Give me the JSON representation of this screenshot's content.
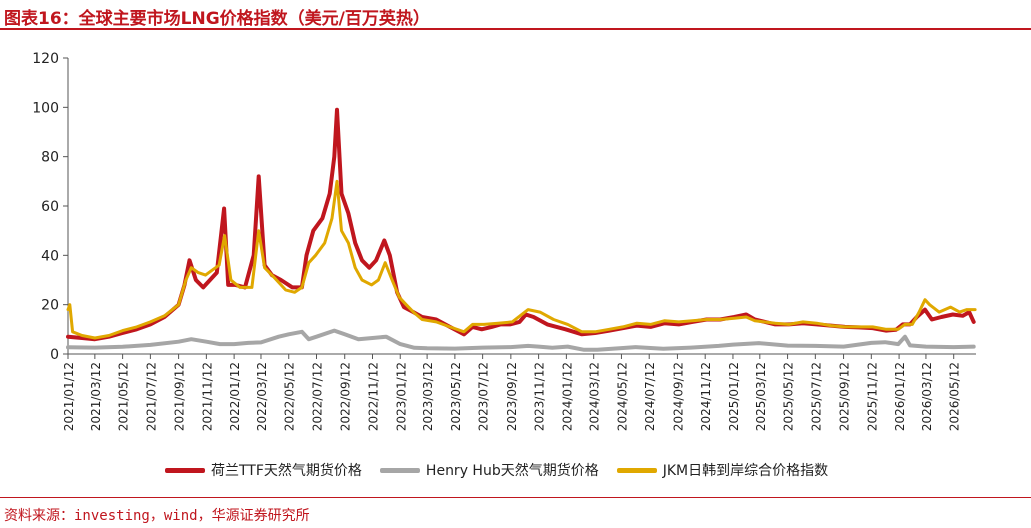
{
  "title": "图表16：全球主要市场LNG价格指数（美元/百万英热）",
  "source": "资料来源：investing，wind，华源证券研究所",
  "colors": {
    "ttf": "#c0161e",
    "henry": "#a6a6a6",
    "jkm": "#e0a800",
    "accent": "#c0161e"
  },
  "chart_data": {
    "type": "line",
    "title": "",
    "xlabel": "",
    "ylabel": "",
    "ylim": [
      0,
      120
    ],
    "yticks": [
      0,
      20,
      40,
      60,
      80,
      100,
      120
    ],
    "grid": false,
    "legend_position": "bottom",
    "x_range": [
      "2021-01-12",
      "2026-06-30"
    ],
    "xticks": [
      "2021/01/12",
      "2021/03/12",
      "2021/05/12",
      "2021/07/12",
      "2021/09/12",
      "2021/11/12",
      "2022/01/12",
      "2022/03/12",
      "2022/05/12",
      "2022/07/12",
      "2022/09/12",
      "2022/11/12",
      "2023/01/12",
      "2023/03/12",
      "2023/05/12",
      "2023/07/12",
      "2023/09/12",
      "2023/11/12",
      "2024/01/12",
      "2024/03/12",
      "2024/05/12",
      "2024/07/12",
      "2024/09/12",
      "2024/11/12",
      "2025/01/12",
      "2025/03/12",
      "2025/05/12",
      "2025/07/12",
      "2025/09/12",
      "2025/11/12",
      "2026/01/12",
      "2026/03/12",
      "2026/05/12"
    ],
    "series": [
      {
        "name": "荷兰TTF天然气期货价格",
        "key": "ttf",
        "points": [
          [
            "2021-01-12",
            7
          ],
          [
            "2021-02-12",
            6.5
          ],
          [
            "2021-03-12",
            6
          ],
          [
            "2021-04-12",
            7
          ],
          [
            "2021-05-12",
            8.5
          ],
          [
            "2021-06-12",
            10
          ],
          [
            "2021-07-12",
            12
          ],
          [
            "2021-08-12",
            15
          ],
          [
            "2021-09-12",
            20
          ],
          [
            "2021-09-25",
            28
          ],
          [
            "2021-10-06",
            38
          ],
          [
            "2021-10-20",
            30
          ],
          [
            "2021-11-05",
            27
          ],
          [
            "2021-11-20",
            30
          ],
          [
            "2021-12-05",
            33
          ],
          [
            "2021-12-21",
            59
          ],
          [
            "2021-12-30",
            28
          ],
          [
            "2022-01-15",
            28
          ],
          [
            "2022-02-05",
            27
          ],
          [
            "2022-02-24",
            40
          ],
          [
            "2022-03-07",
            72
          ],
          [
            "2022-03-20",
            36
          ],
          [
            "2022-04-05",
            32
          ],
          [
            "2022-04-25",
            30
          ],
          [
            "2022-05-20",
            27
          ],
          [
            "2022-06-10",
            27
          ],
          [
            "2022-06-20",
            40
          ],
          [
            "2022-07-05",
            50
          ],
          [
            "2022-07-25",
            55
          ],
          [
            "2022-08-10",
            65
          ],
          [
            "2022-08-20",
            80
          ],
          [
            "2022-08-26",
            99
          ],
          [
            "2022-09-05",
            65
          ],
          [
            "2022-09-20",
            57
          ],
          [
            "2022-10-05",
            45
          ],
          [
            "2022-10-20",
            38
          ],
          [
            "2022-11-05",
            35
          ],
          [
            "2022-11-20",
            38
          ],
          [
            "2022-12-08",
            46
          ],
          [
            "2022-12-20",
            40
          ],
          [
            "2023-01-05",
            25
          ],
          [
            "2023-01-20",
            19
          ],
          [
            "2023-02-10",
            17
          ],
          [
            "2023-03-01",
            15
          ],
          [
            "2023-04-01",
            14
          ],
          [
            "2023-05-01",
            11
          ],
          [
            "2023-06-01",
            8
          ],
          [
            "2023-06-20",
            11
          ],
          [
            "2023-07-10",
            10
          ],
          [
            "2023-08-01",
            11
          ],
          [
            "2023-08-20",
            12
          ],
          [
            "2023-09-10",
            12
          ],
          [
            "2023-10-01",
            13
          ],
          [
            "2023-10-15",
            16
          ],
          [
            "2023-11-01",
            15
          ],
          [
            "2023-12-01",
            12
          ],
          [
            "2024-01-10",
            10
          ],
          [
            "2024-02-15",
            8
          ],
          [
            "2024-03-15",
            8.5
          ],
          [
            "2024-04-15",
            9.5
          ],
          [
            "2024-05-15",
            10.5
          ],
          [
            "2024-06-15",
            11.5
          ],
          [
            "2024-07-15",
            11
          ],
          [
            "2024-08-15",
            12.5
          ],
          [
            "2024-09-15",
            12
          ],
          [
            "2024-10-15",
            13
          ],
          [
            "2024-11-15",
            14
          ],
          [
            "2024-12-15",
            14
          ],
          [
            "2025-01-15",
            15
          ],
          [
            "2025-02-10",
            16
          ],
          [
            "2025-03-01",
            14
          ],
          [
            "2025-04-15",
            12
          ],
          [
            "2025-05-15",
            12
          ],
          [
            "2025-06-15",
            12.5
          ],
          [
            "2025-07-15",
            12
          ],
          [
            "2025-08-15",
            11.5
          ],
          [
            "2025-09-15",
            11
          ],
          [
            "2025-10-15",
            10.8
          ],
          [
            "2025-11-15",
            10.5
          ],
          [
            "2025-12-15",
            9.5
          ],
          [
            "2026-01-05",
            9.8
          ],
          [
            "2026-01-20",
            12
          ],
          [
            "2026-02-05",
            12
          ],
          [
            "2026-02-20",
            15
          ],
          [
            "2026-03-10",
            18
          ],
          [
            "2026-03-25",
            14
          ],
          [
            "2026-04-15",
            15
          ],
          [
            "2026-05-10",
            16
          ],
          [
            "2026-06-01",
            15.5
          ],
          [
            "2026-06-15",
            17
          ],
          [
            "2026-06-25",
            13
          ]
        ]
      },
      {
        "name": "Henry Hub天然气期货价格",
        "key": "henry",
        "points": [
          [
            "2021-01-12",
            2.7
          ],
          [
            "2021-03-12",
            2.6
          ],
          [
            "2021-05-12",
            2.9
          ],
          [
            "2021-07-12",
            3.7
          ],
          [
            "2021-09-12",
            5
          ],
          [
            "2021-10-10",
            6
          ],
          [
            "2021-11-12",
            5
          ],
          [
            "2021-12-12",
            4
          ],
          [
            "2022-01-12",
            4
          ],
          [
            "2022-02-12",
            4.5
          ],
          [
            "2022-03-12",
            4.7
          ],
          [
            "2022-04-20",
            7
          ],
          [
            "2022-05-12",
            8
          ],
          [
            "2022-06-10",
            9
          ],
          [
            "2022-06-25",
            6
          ],
          [
            "2022-07-12",
            7
          ],
          [
            "2022-08-20",
            9.5
          ],
          [
            "2022-09-12",
            8
          ],
          [
            "2022-10-12",
            6
          ],
          [
            "2022-11-12",
            6.5
          ],
          [
            "2022-12-12",
            7
          ],
          [
            "2023-01-12",
            4
          ],
          [
            "2023-02-12",
            2.5
          ],
          [
            "2023-03-12",
            2.3
          ],
          [
            "2023-05-12",
            2.2
          ],
          [
            "2023-07-12",
            2.6
          ],
          [
            "2023-09-12",
            2.8
          ],
          [
            "2023-10-20",
            3.3
          ],
          [
            "2023-11-12",
            3
          ],
          [
            "2023-12-12",
            2.5
          ],
          [
            "2024-01-15",
            3
          ],
          [
            "2024-02-20",
            1.7
          ],
          [
            "2024-03-20",
            1.7
          ],
          [
            "2024-05-12",
            2.4
          ],
          [
            "2024-06-12",
            2.8
          ],
          [
            "2024-08-12",
            2.1
          ],
          [
            "2024-10-12",
            2.6
          ],
          [
            "2024-12-12",
            3.3
          ],
          [
            "2025-01-12",
            3.8
          ],
          [
            "2025-03-10",
            4.4
          ],
          [
            "2025-05-12",
            3.4
          ],
          [
            "2025-07-12",
            3.3
          ],
          [
            "2025-09-12",
            3
          ],
          [
            "2025-11-12",
            4.5
          ],
          [
            "2025-12-12",
            4.8
          ],
          [
            "2026-01-10",
            4
          ],
          [
            "2026-01-25",
            7
          ],
          [
            "2026-02-05",
            3.5
          ],
          [
            "2026-03-12",
            3
          ],
          [
            "2026-05-12",
            2.8
          ],
          [
            "2026-06-25",
            3
          ]
        ]
      },
      {
        "name": "JKM日韩到岸综合价格指数",
        "key": "jkm",
        "points": [
          [
            "2021-01-12",
            18
          ],
          [
            "2021-01-16",
            20
          ],
          [
            "2021-01-22",
            9
          ],
          [
            "2021-02-12",
            7.5
          ],
          [
            "2021-03-12",
            6.5
          ],
          [
            "2021-04-12",
            7.5
          ],
          [
            "2021-05-12",
            9.5
          ],
          [
            "2021-06-12",
            11
          ],
          [
            "2021-07-12",
            13
          ],
          [
            "2021-08-12",
            15.5
          ],
          [
            "2021-09-12",
            20
          ],
          [
            "2021-09-28",
            30
          ],
          [
            "2021-10-10",
            35
          ],
          [
            "2021-10-25",
            33
          ],
          [
            "2021-11-10",
            32
          ],
          [
            "2021-11-25",
            34
          ],
          [
            "2021-12-10",
            36
          ],
          [
            "2021-12-22",
            48
          ],
          [
            "2022-01-05",
            30
          ],
          [
            "2022-01-25",
            27
          ],
          [
            "2022-02-20",
            27
          ],
          [
            "2022-03-07",
            50
          ],
          [
            "2022-03-20",
            35
          ],
          [
            "2022-04-10",
            31
          ],
          [
            "2022-05-05",
            26
          ],
          [
            "2022-05-25",
            25
          ],
          [
            "2022-06-10",
            27
          ],
          [
            "2022-06-25",
            37
          ],
          [
            "2022-07-10",
            40
          ],
          [
            "2022-07-30",
            45
          ],
          [
            "2022-08-15",
            55
          ],
          [
            "2022-08-26",
            70
          ],
          [
            "2022-09-05",
            50
          ],
          [
            "2022-09-20",
            45
          ],
          [
            "2022-10-05",
            35
          ],
          [
            "2022-10-20",
            30
          ],
          [
            "2022-11-10",
            28
          ],
          [
            "2022-11-25",
            30
          ],
          [
            "2022-12-10",
            37
          ],
          [
            "2022-12-25",
            30
          ],
          [
            "2023-01-10",
            23
          ],
          [
            "2023-01-25",
            20
          ],
          [
            "2023-02-10",
            17
          ],
          [
            "2023-03-01",
            14
          ],
          [
            "2023-04-01",
            13
          ],
          [
            "2023-05-01",
            11
          ],
          [
            "2023-06-01",
            9
          ],
          [
            "2023-06-20",
            12
          ],
          [
            "2023-07-15",
            12
          ],
          [
            "2023-08-15",
            12.5
          ],
          [
            "2023-09-15",
            13
          ],
          [
            "2023-10-20",
            18
          ],
          [
            "2023-11-15",
            17
          ],
          [
            "2023-12-15",
            14
          ],
          [
            "2024-01-15",
            12
          ],
          [
            "2024-02-15",
            9
          ],
          [
            "2024-03-15",
            9
          ],
          [
            "2024-04-15",
            10
          ],
          [
            "2024-05-15",
            11
          ],
          [
            "2024-06-15",
            12.5
          ],
          [
            "2024-07-15",
            12
          ],
          [
            "2024-08-15",
            13.5
          ],
          [
            "2024-09-15",
            13
          ],
          [
            "2024-10-15",
            13.5
          ],
          [
            "2024-11-15",
            14
          ],
          [
            "2024-12-15",
            14
          ],
          [
            "2025-01-15",
            14.5
          ],
          [
            "2025-02-10",
            15
          ],
          [
            "2025-03-01",
            13.5
          ],
          [
            "2025-04-15",
            12.5
          ],
          [
            "2025-05-15",
            12
          ],
          [
            "2025-06-15",
            13
          ],
          [
            "2025-07-15",
            12.5
          ],
          [
            "2025-08-15",
            11.5
          ],
          [
            "2025-09-15",
            11
          ],
          [
            "2025-10-15",
            11
          ],
          [
            "2025-11-15",
            11
          ],
          [
            "2025-12-15",
            10
          ],
          [
            "2026-01-10",
            10
          ],
          [
            "2026-01-25",
            12
          ],
          [
            "2026-02-10",
            12
          ],
          [
            "2026-02-25",
            17
          ],
          [
            "2026-03-10",
            22
          ],
          [
            "2026-03-20",
            20
          ],
          [
            "2026-04-10",
            17
          ],
          [
            "2026-05-05",
            19
          ],
          [
            "2026-05-25",
            17
          ],
          [
            "2026-06-10",
            18
          ],
          [
            "2026-06-28",
            18
          ]
        ]
      }
    ]
  }
}
